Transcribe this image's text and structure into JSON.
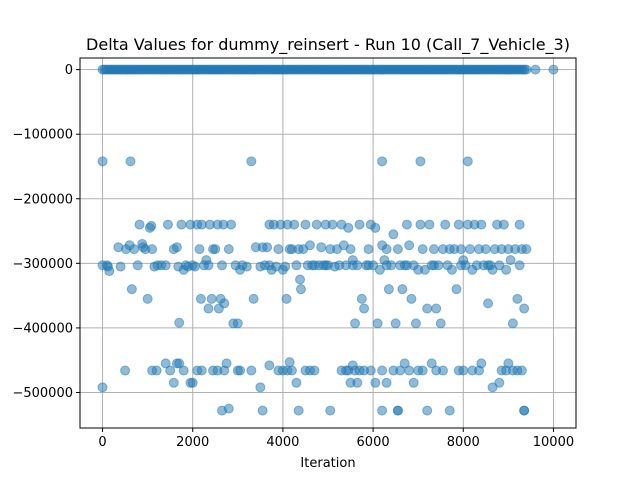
{
  "chart_data": {
    "type": "scatter",
    "title": "Delta Values for dummy_reinsert - Run 10 (Call_7_Vehicle_3)",
    "xlabel": "Iteration",
    "ylabel": "",
    "xlim": [
      -500,
      10500
    ],
    "ylim": [
      -555000,
      18000
    ],
    "xticks": [
      0,
      2000,
      4000,
      6000,
      8000,
      10000
    ],
    "xtick_labels": [
      "0",
      "2000",
      "4000",
      "6000",
      "8000",
      "10000"
    ],
    "yticks": [
      0,
      -100000,
      -200000,
      -300000,
      -400000,
      -500000
    ],
    "ytick_labels": [
      "0",
      "−100000",
      "−200000",
      "−300000",
      "−400000",
      "−500000"
    ],
    "grid": true,
    "color": "#1f77b4",
    "zero_band": {
      "x_start": 0,
      "x_end": 9400,
      "step": 40,
      "y": 0
    },
    "points": [
      [
        9600,
        0
      ],
      [
        10000,
        0
      ],
      [
        0,
        -142000
      ],
      [
        620,
        -142000
      ],
      [
        3300,
        -142000
      ],
      [
        6200,
        -142000
      ],
      [
        7050,
        -142000
      ],
      [
        8100,
        -142000
      ],
      [
        0,
        -492000
      ],
      [
        0,
        -303000
      ],
      [
        120,
        -305000
      ],
      [
        150,
        -312000
      ],
      [
        350,
        -275000
      ],
      [
        520,
        -278000
      ],
      [
        600,
        -272000
      ],
      [
        650,
        -340000
      ],
      [
        700,
        -278000
      ],
      [
        780,
        -303000
      ],
      [
        820,
        -240000
      ],
      [
        880,
        -270000
      ],
      [
        900,
        -275000
      ],
      [
        950,
        -278000
      ],
      [
        1000,
        -355000
      ],
      [
        1050,
        -245000
      ],
      [
        1080,
        -242000
      ],
      [
        1100,
        -278000
      ],
      [
        1150,
        -305000
      ],
      [
        1220,
        -303000
      ],
      [
        1300,
        -303000
      ],
      [
        1450,
        -240000
      ],
      [
        1580,
        -278000
      ],
      [
        1650,
        -275000
      ],
      [
        1680,
        -305000
      ],
      [
        1700,
        -392000
      ],
      [
        1750,
        -240000
      ],
      [
        1800,
        -310000
      ],
      [
        1850,
        -303000
      ],
      [
        1900,
        -305000
      ],
      [
        1950,
        -240000
      ],
      [
        2000,
        -303000
      ],
      [
        2050,
        -305000
      ],
      [
        2100,
        -240000
      ],
      [
        2150,
        -278000
      ],
      [
        2180,
        -355000
      ],
      [
        2200,
        -240000
      ],
      [
        2250,
        -303000
      ],
      [
        2300,
        -295000
      ],
      [
        2350,
        -370000
      ],
      [
        2380,
        -240000
      ],
      [
        2420,
        -355000
      ],
      [
        2450,
        -278000
      ],
      [
        2500,
        -278000
      ],
      [
        2550,
        -240000
      ],
      [
        2580,
        -370000
      ],
      [
        2620,
        -355000
      ],
      [
        2680,
        -240000
      ],
      [
        2700,
        -362000
      ],
      [
        2800,
        -278000
      ],
      [
        2850,
        -240000
      ],
      [
        2900,
        -393000
      ],
      [
        2950,
        -303000
      ],
      [
        3000,
        -393000
      ],
      [
        3050,
        -310000
      ],
      [
        3200,
        -305000
      ],
      [
        3350,
        -355000
      ],
      [
        3400,
        -275000
      ],
      [
        3500,
        -305000
      ],
      [
        3550,
        -275000
      ],
      [
        3650,
        -275000
      ],
      [
        3700,
        -240000
      ],
      [
        3750,
        -310000
      ],
      [
        3800,
        -240000
      ],
      [
        3850,
        -305000
      ],
      [
        3900,
        -278000
      ],
      [
        3950,
        -240000
      ],
      [
        4000,
        -310000
      ],
      [
        4050,
        -305000
      ],
      [
        4080,
        -355000
      ],
      [
        4100,
        -240000
      ],
      [
        4150,
        -278000
      ],
      [
        4200,
        -278000
      ],
      [
        4250,
        -240000
      ],
      [
        4300,
        -303000
      ],
      [
        4350,
        -278000
      ],
      [
        4380,
        -325000
      ],
      [
        4400,
        -340000
      ],
      [
        4450,
        -278000
      ],
      [
        4500,
        -240000
      ],
      [
        4550,
        -303000
      ],
      [
        4600,
        -272000
      ],
      [
        4650,
        -303000
      ],
      [
        4700,
        -303000
      ],
      [
        4750,
        -240000
      ],
      [
        4800,
        -303000
      ],
      [
        4850,
        -275000
      ],
      [
        4900,
        -303000
      ],
      [
        4950,
        -240000
      ],
      [
        5000,
        -303000
      ],
      [
        5050,
        -278000
      ],
      [
        5100,
        -240000
      ],
      [
        5150,
        -305000
      ],
      [
        5200,
        -278000
      ],
      [
        5250,
        -303000
      ],
      [
        5300,
        -240000
      ],
      [
        5350,
        -272000
      ],
      [
        5400,
        -303000
      ],
      [
        5450,
        -245000
      ],
      [
        5500,
        -278000
      ],
      [
        5550,
        -295000
      ],
      [
        5600,
        -393000
      ],
      [
        5650,
        -303000
      ],
      [
        5700,
        -240000
      ],
      [
        5750,
        -355000
      ],
      [
        5800,
        -370000
      ],
      [
        5850,
        -303000
      ],
      [
        5900,
        -278000
      ],
      [
        5950,
        -240000
      ],
      [
        6000,
        -303000
      ],
      [
        6050,
        -245000
      ],
      [
        6100,
        -393000
      ],
      [
        6150,
        -310000
      ],
      [
        6200,
        -272000
      ],
      [
        6250,
        -295000
      ],
      [
        6300,
        -278000
      ],
      [
        6350,
        -340000
      ],
      [
        6400,
        -303000
      ],
      [
        6450,
        -255000
      ],
      [
        6500,
        -393000
      ],
      [
        6550,
        -278000
      ],
      [
        6600,
        -303000
      ],
      [
        6650,
        -340000
      ],
      [
        6700,
        -303000
      ],
      [
        6750,
        -240000
      ],
      [
        6800,
        -272000
      ],
      [
        6850,
        -355000
      ],
      [
        6900,
        -303000
      ],
      [
        6950,
        -393000
      ],
      [
        7000,
        -310000
      ],
      [
        7050,
        -240000
      ],
      [
        7100,
        -278000
      ],
      [
        7150,
        -310000
      ],
      [
        7200,
        -370000
      ],
      [
        7250,
        -240000
      ],
      [
        7300,
        -303000
      ],
      [
        7350,
        -278000
      ],
      [
        7400,
        -370000
      ],
      [
        7450,
        -303000
      ],
      [
        7500,
        -393000
      ],
      [
        7550,
        -278000
      ],
      [
        7600,
        -240000
      ],
      [
        7650,
        -303000
      ],
      [
        7700,
        -278000
      ],
      [
        7750,
        -310000
      ],
      [
        7800,
        -278000
      ],
      [
        7850,
        -340000
      ],
      [
        7900,
        -240000
      ],
      [
        7950,
        -278000
      ],
      [
        8000,
        -295000
      ],
      [
        8050,
        -303000
      ],
      [
        8100,
        -240000
      ],
      [
        8150,
        -278000
      ],
      [
        8200,
        -310000
      ],
      [
        8250,
        -240000
      ],
      [
        8300,
        -303000
      ],
      [
        8350,
        -278000
      ],
      [
        8400,
        -240000
      ],
      [
        8450,
        -303000
      ],
      [
        8500,
        -278000
      ],
      [
        8550,
        -362000
      ],
      [
        8600,
        -303000
      ],
      [
        8650,
        -310000
      ],
      [
        8700,
        -278000
      ],
      [
        8750,
        -240000
      ],
      [
        8800,
        -303000
      ],
      [
        8850,
        -278000
      ],
      [
        8900,
        -240000
      ],
      [
        8950,
        -310000
      ],
      [
        9000,
        -278000
      ],
      [
        9050,
        -295000
      ],
      [
        9100,
        -393000
      ],
      [
        9150,
        -278000
      ],
      [
        9200,
        -355000
      ],
      [
        9250,
        -240000
      ],
      [
        9300,
        -278000
      ],
      [
        9350,
        -370000
      ],
      [
        9400,
        -278000
      ],
      [
        100,
        -303000
      ],
      [
        400,
        -305000
      ],
      [
        1400,
        -303000
      ],
      [
        2350,
        -303000
      ],
      [
        2650,
        -303000
      ],
      [
        3100,
        -303000
      ],
      [
        3600,
        -303000
      ],
      [
        3700,
        -303000
      ],
      [
        4950,
        -303000
      ],
      [
        5550,
        -303000
      ],
      [
        5900,
        -303000
      ],
      [
        6300,
        -303000
      ],
      [
        6750,
        -303000
      ],
      [
        7350,
        -303000
      ],
      [
        7950,
        -303000
      ],
      [
        8550,
        -303000
      ],
      [
        9250,
        -303000
      ],
      [
        500,
        -466000
      ],
      [
        1100,
        -466000
      ],
      [
        1200,
        -466000
      ],
      [
        1400,
        -455000
      ],
      [
        1500,
        -466000
      ],
      [
        1580,
        -485000
      ],
      [
        1650,
        -455000
      ],
      [
        1700,
        -455000
      ],
      [
        1800,
        -466000
      ],
      [
        1950,
        -485000
      ],
      [
        2000,
        -485000
      ],
      [
        2100,
        -466000
      ],
      [
        2200,
        -466000
      ],
      [
        2450,
        -466000
      ],
      [
        2550,
        -466000
      ],
      [
        2650,
        -528000
      ],
      [
        2700,
        -466000
      ],
      [
        2750,
        -455000
      ],
      [
        2800,
        -525000
      ],
      [
        3000,
        -466000
      ],
      [
        3050,
        -466000
      ],
      [
        3300,
        -466000
      ],
      [
        3500,
        -492000
      ],
      [
        3550,
        -528000
      ],
      [
        3700,
        -458000
      ],
      [
        3900,
        -466000
      ],
      [
        4000,
        -466000
      ],
      [
        4100,
        -466000
      ],
      [
        4150,
        -453000
      ],
      [
        4200,
        -466000
      ],
      [
        4300,
        -485000
      ],
      [
        4350,
        -528000
      ],
      [
        4500,
        -466000
      ],
      [
        4600,
        -466000
      ],
      [
        4700,
        -466000
      ],
      [
        5050,
        -528000
      ],
      [
        5300,
        -466000
      ],
      [
        5400,
        -466000
      ],
      [
        5450,
        -466000
      ],
      [
        5500,
        -485000
      ],
      [
        5550,
        -458000
      ],
      [
        5600,
        -466000
      ],
      [
        5650,
        -485000
      ],
      [
        5700,
        -466000
      ],
      [
        5800,
        -466000
      ],
      [
        5950,
        -466000
      ],
      [
        6050,
        -485000
      ],
      [
        6200,
        -466000
      ],
      [
        6300,
        -485000
      ],
      [
        6450,
        -466000
      ],
      [
        6550,
        -528000
      ],
      [
        6600,
        -466000
      ],
      [
        6700,
        -455000
      ],
      [
        6800,
        -466000
      ],
      [
        6900,
        -485000
      ],
      [
        7000,
        -466000
      ],
      [
        7100,
        -466000
      ],
      [
        7200,
        -528000
      ],
      [
        7300,
        -455000
      ],
      [
        7400,
        -466000
      ],
      [
        7550,
        -466000
      ],
      [
        7700,
        -528000
      ],
      [
        7900,
        -466000
      ],
      [
        8000,
        -466000
      ],
      [
        8200,
        -466000
      ],
      [
        8350,
        -466000
      ],
      [
        8400,
        -455000
      ],
      [
        8650,
        -492000
      ],
      [
        8800,
        -485000
      ],
      [
        8850,
        -466000
      ],
      [
        8950,
        -466000
      ],
      [
        9000,
        -455000
      ],
      [
        9100,
        -466000
      ],
      [
        9200,
        -466000
      ],
      [
        9300,
        -466000
      ],
      [
        9350,
        -528000
      ],
      [
        6200,
        -528000
      ],
      [
        6550,
        -528000
      ],
      [
        9350,
        -528000
      ]
    ]
  }
}
